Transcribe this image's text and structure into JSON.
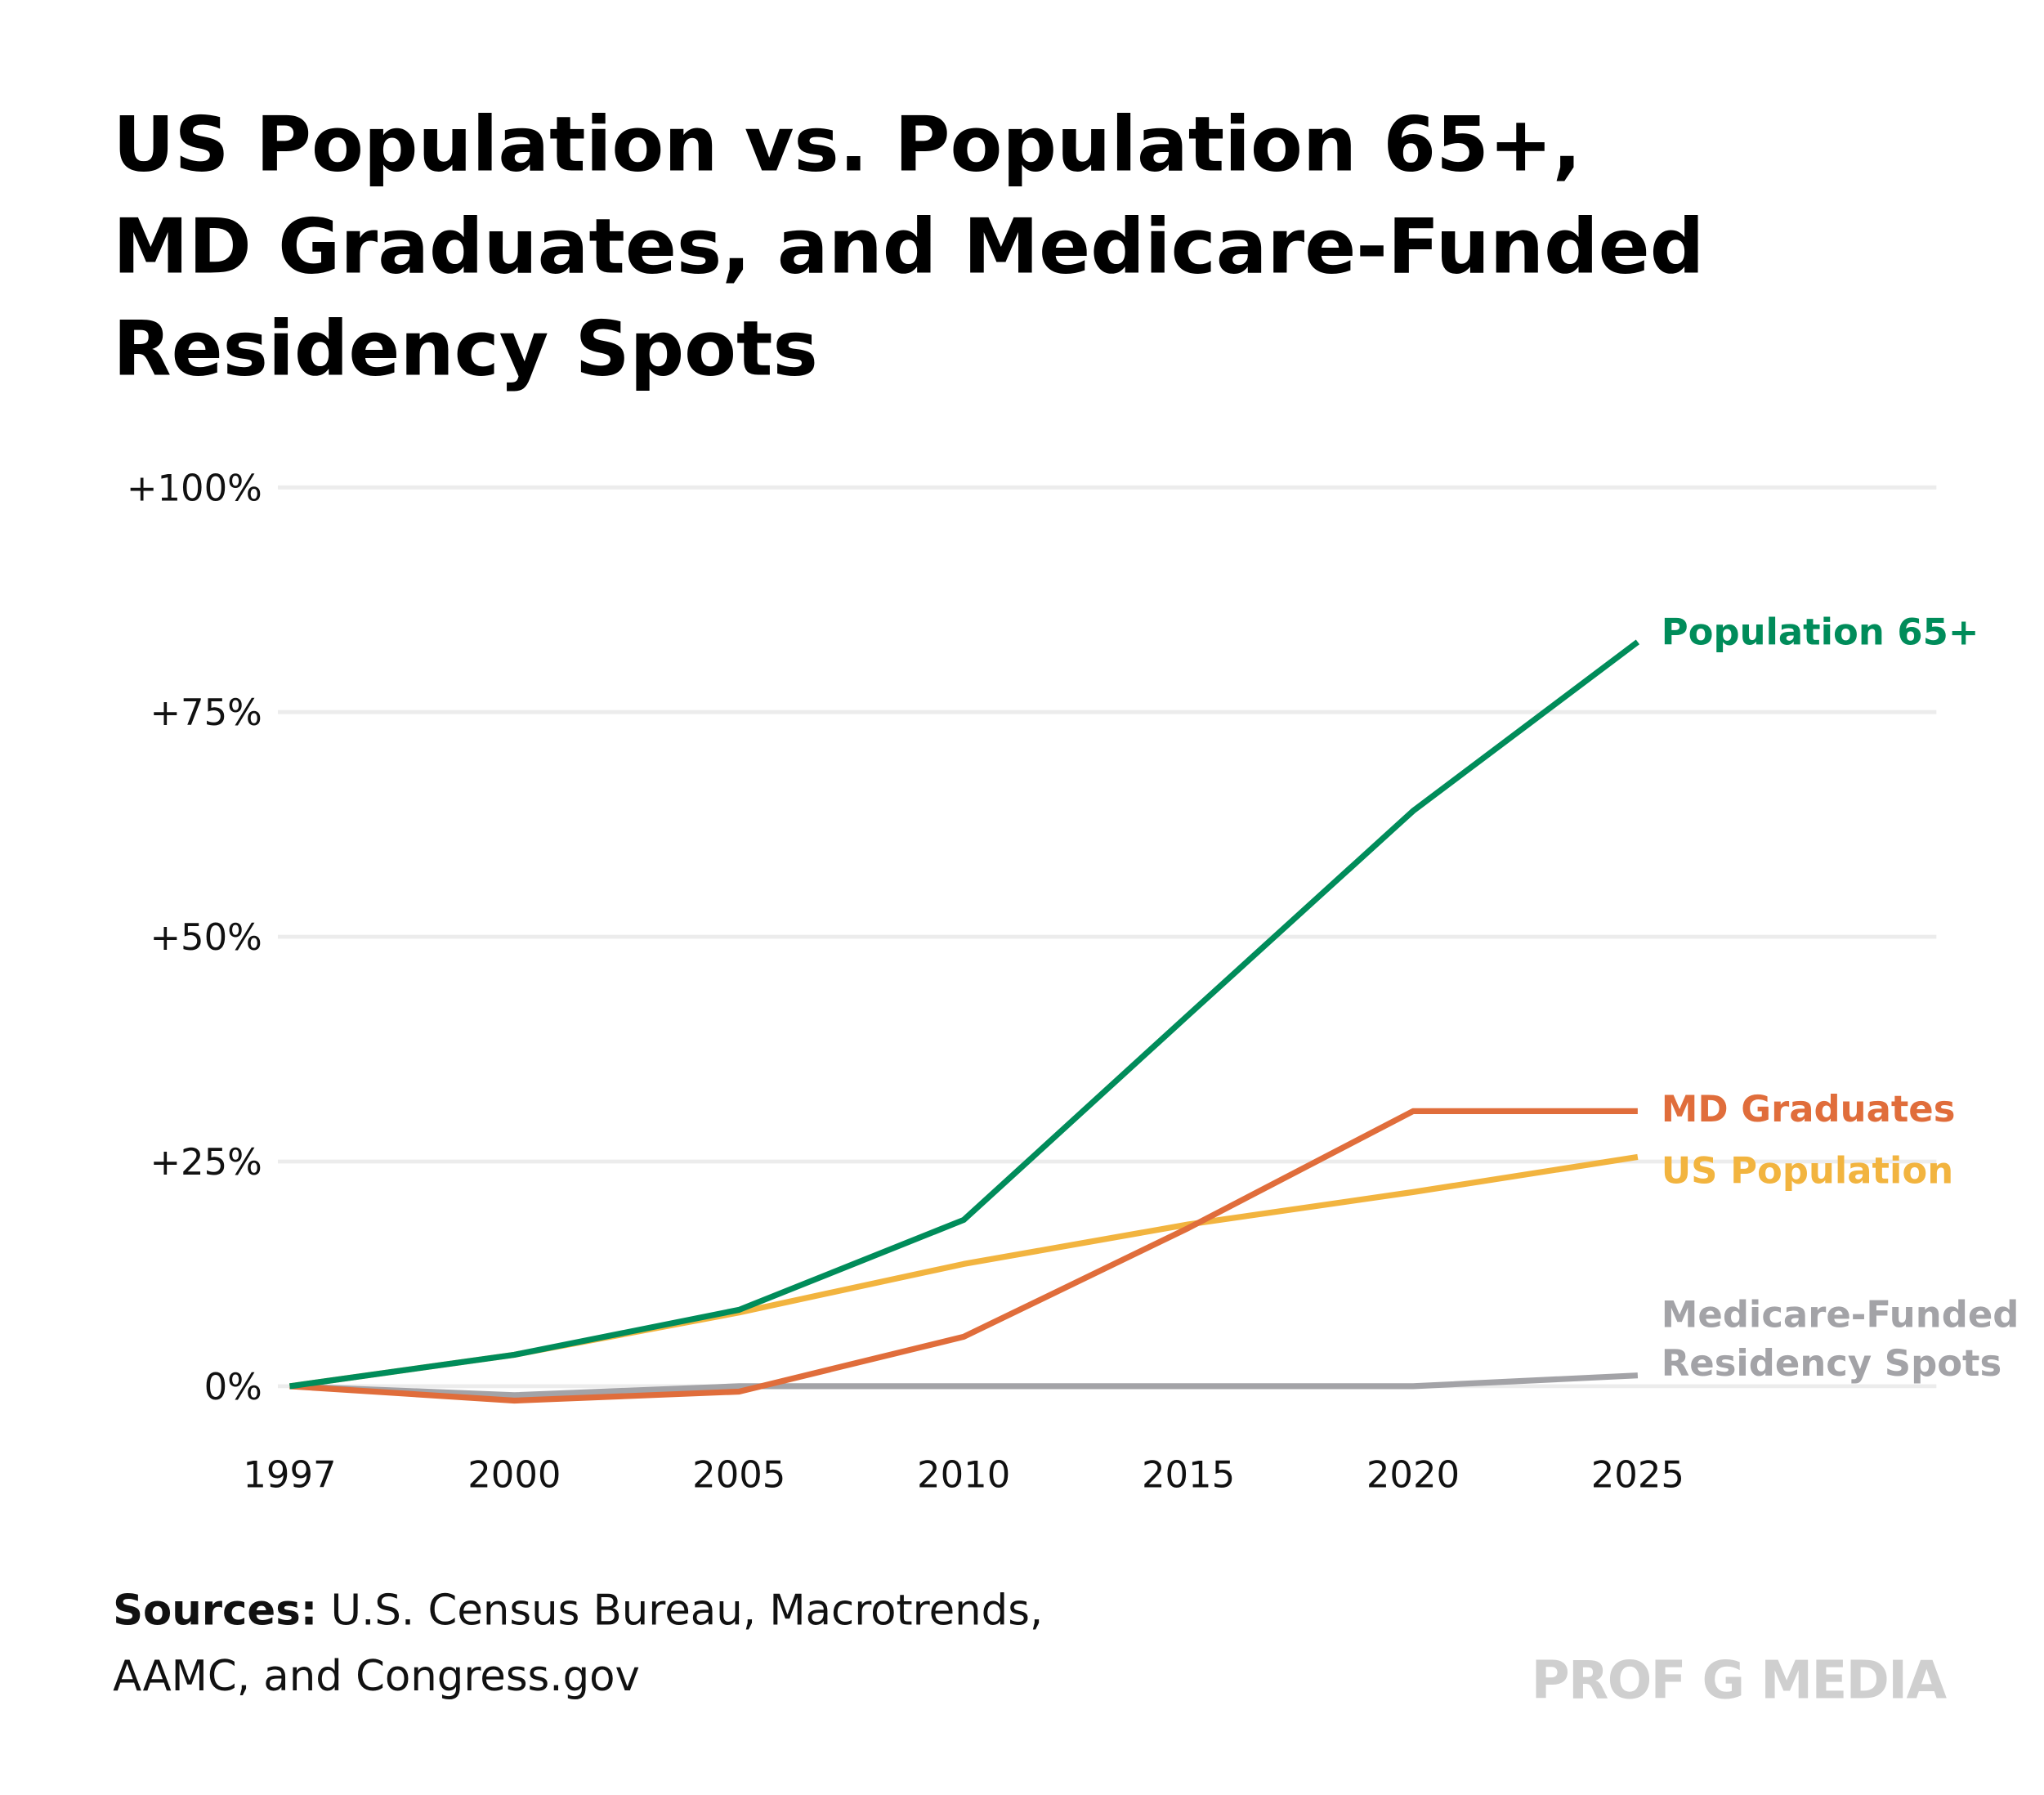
{
  "chart_data": {
    "type": "line",
    "title_lines": [
      "US Population vs. Population 65+,",
      "MD Graduates, and Medicare-Funded",
      "Residency Spots"
    ],
    "xlabel": "",
    "ylabel": "",
    "categories": [
      "1997",
      "2000",
      "2005",
      "2010",
      "2015",
      "2020",
      "2025"
    ],
    "ylim": [
      0,
      100
    ],
    "yticks": [
      0,
      25,
      50,
      75,
      100
    ],
    "ytick_labels": [
      "0%",
      "+25%",
      "+50%",
      "+75%",
      "+100%"
    ],
    "grid": true,
    "legend": "direct labels at line ends (right)",
    "series": [
      {
        "name": "Medicare-Funded Residency Spots",
        "label_lines": [
          "Medicare-Funded",
          "Residency Spots"
        ],
        "color": "#a3a3a7",
        "values": [
          0,
          -1,
          0,
          0,
          0,
          0,
          1.2
        ]
      },
      {
        "name": "US Population",
        "label_lines": [
          "US Population"
        ],
        "color": "#f2b43f",
        "values": [
          0,
          3.5,
          8.2,
          13.6,
          18,
          21.6,
          25.5
        ]
      },
      {
        "name": "MD Graduates",
        "label_lines": [
          "MD Graduates"
        ],
        "color": "#e06d3b",
        "values": [
          0,
          -1.6,
          -0.6,
          5.5,
          17.6,
          30.6,
          30.6
        ]
      },
      {
        "name": "Population 65+",
        "label_lines": [
          "Population 65+"
        ],
        "color": "#008c5a",
        "values": [
          0,
          3.5,
          8.5,
          18.5,
          41.3,
          64,
          82.8
        ]
      }
    ]
  },
  "footer": {
    "sources_label": "Sources:",
    "sources_line1": " U.S. Census Bureau, Macrotrends,",
    "sources_line2": "AAMC, and Congress.gov",
    "brand": "PROF G MEDIA"
  }
}
